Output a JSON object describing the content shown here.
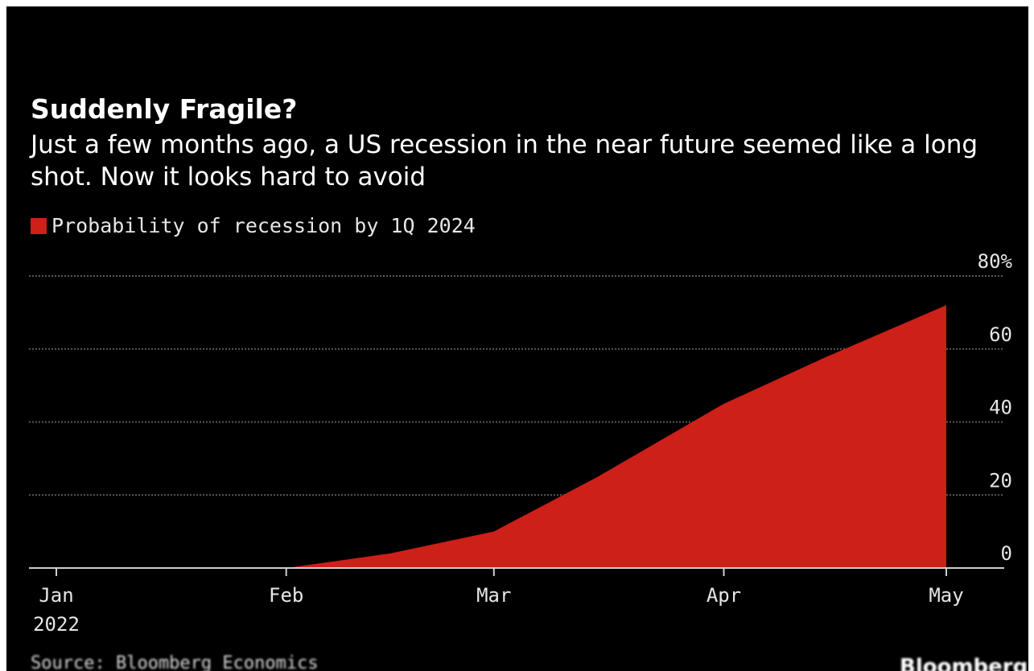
{
  "chart_data": {
    "type": "area",
    "title": "Suddenly Fragile?",
    "subtitle": "Just a few months ago, a US recession in the near future seemed like a long shot. Now it looks hard to avoid",
    "legend": [
      {
        "name": "Probability of recession by 1Q 2024",
        "color": "#cc2018"
      }
    ],
    "series": [
      {
        "name": "Probability of recession by 1Q 2024",
        "color": "#cc2018",
        "x": [
          "2022-02-01",
          "2022-02-15",
          "2022-03-01",
          "2022-03-15",
          "2022-04-01",
          "2022-04-15",
          "2022-05-01"
        ],
        "values": [
          0,
          4,
          10,
          25,
          45,
          58,
          72
        ]
      }
    ],
    "x_ticks": [
      {
        "date": "2022-01-01",
        "label": "Jan",
        "sublabel": "2022"
      },
      {
        "date": "2022-02-01",
        "label": "Feb",
        "sublabel": ""
      },
      {
        "date": "2022-03-01",
        "label": "Mar",
        "sublabel": ""
      },
      {
        "date": "2022-04-01",
        "label": "Apr",
        "sublabel": ""
      },
      {
        "date": "2022-05-01",
        "label": "May",
        "sublabel": ""
      }
    ],
    "y_ticks": [
      {
        "value": 0,
        "label": "0"
      },
      {
        "value": 20,
        "label": "20"
      },
      {
        "value": 40,
        "label": "40"
      },
      {
        "value": 60,
        "label": "60"
      },
      {
        "value": 80,
        "label": "80%"
      }
    ],
    "xlim": [
      "2022-01-01",
      "2022-05-01"
    ],
    "ylim": [
      0,
      80
    ],
    "grid": true,
    "legend_position": "top-left",
    "background": "#000000",
    "gridline_color": "#5a5a5a"
  },
  "source": "Source: Bloomberg Economics",
  "brand": "Bloomberg"
}
